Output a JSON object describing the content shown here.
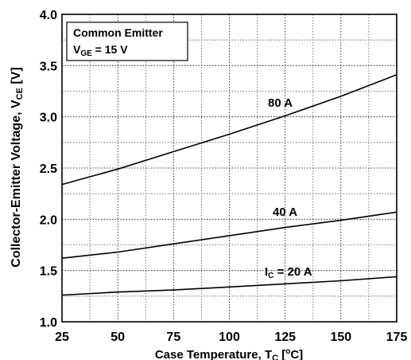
{
  "chart_data": {
    "type": "line",
    "xlabel": "Case Temperature, T",
    "xlabel_sub": "C",
    "xlabel_tail": " [",
    "xlabel_sup": "o",
    "xlabel_end": "C]",
    "ylabel": "Collector-Emitter Voltage, V",
    "ylabel_sub": "CE",
    "ylabel_tail": " [V]",
    "xlim": [
      25,
      175
    ],
    "ylim": [
      1.0,
      4.0
    ],
    "x_ticks": [
      25,
      50,
      75,
      100,
      125,
      150,
      175
    ],
    "x_tick_labels": [
      "25",
      "50",
      "75",
      "100",
      "125",
      "150",
      "175"
    ],
    "y_ticks": [
      1.0,
      1.5,
      2.0,
      2.5,
      3.0,
      3.5,
      4.0
    ],
    "y_tick_labels": [
      "1.0",
      "1.5",
      "2.0",
      "2.5",
      "3.0",
      "3.5",
      "4.0"
    ],
    "grid": true,
    "legend_box": {
      "line1": "Common Emitter",
      "line2_main": "V",
      "line2_sub": "GE",
      "line2_tail": " = 15 V",
      "placement": "top-left"
    },
    "series": [
      {
        "label": "80 A",
        "x": [
          25,
          50,
          75,
          100,
          125,
          150,
          175
        ],
        "y": [
          2.34,
          2.49,
          2.66,
          2.83,
          3.01,
          3.2,
          3.41
        ]
      },
      {
        "label": "40 A",
        "x": [
          25,
          50,
          75,
          100,
          125,
          150,
          175
        ],
        "y": [
          1.62,
          1.68,
          1.76,
          1.84,
          1.92,
          1.99,
          2.07
        ]
      },
      {
        "label_main": "I",
        "label_sub": "C",
        "label_tail": " = 20 A",
        "x": [
          25,
          50,
          75,
          100,
          125,
          150,
          175
        ],
        "y": [
          1.26,
          1.29,
          1.31,
          1.34,
          1.37,
          1.4,
          1.44
        ]
      }
    ]
  }
}
